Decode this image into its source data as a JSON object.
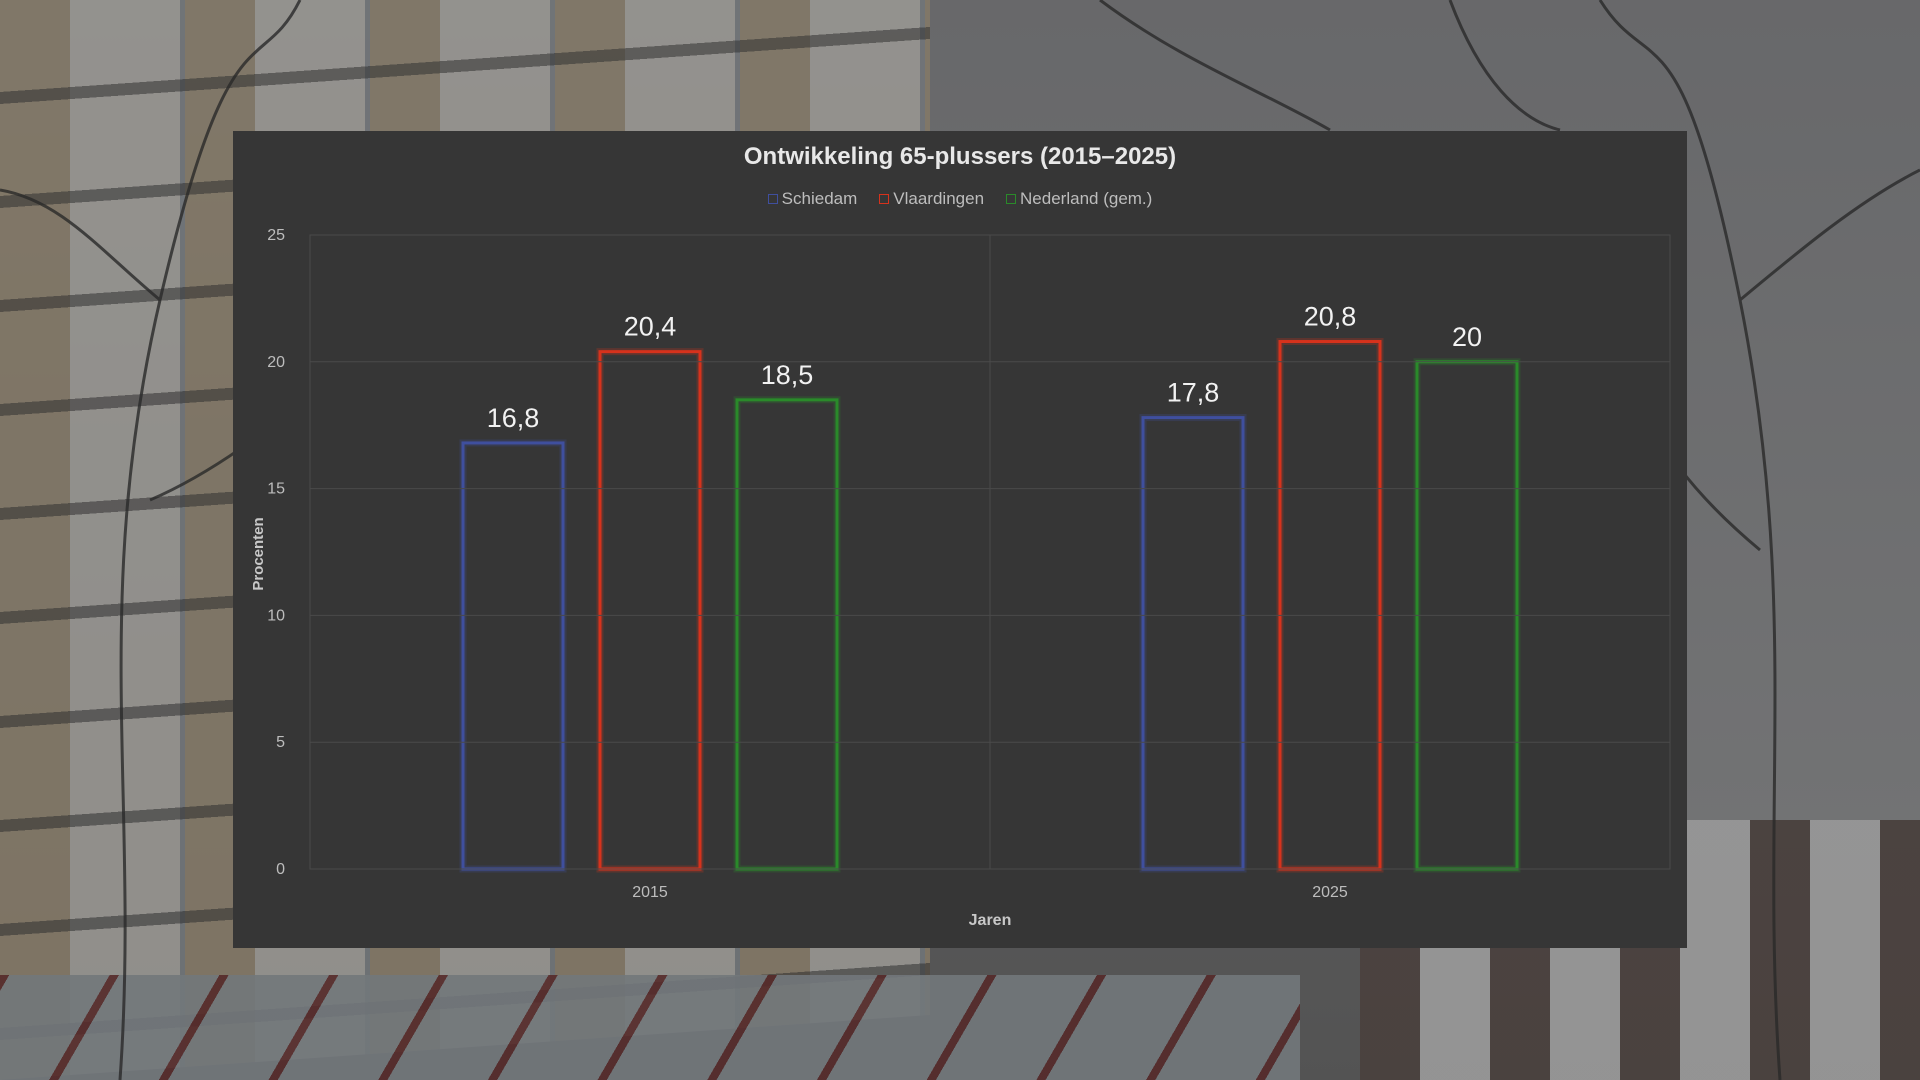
{
  "chart_data": {
    "type": "bar",
    "title": "Ontwikkeling 65-plussers (2015–2025)",
    "xlabel": "Jaren",
    "ylabel": "Procenten",
    "categories": [
      "2015",
      "2025"
    ],
    "ylim": [
      0,
      25
    ],
    "yticks": [
      "0",
      "5",
      "10",
      "15",
      "20",
      "25"
    ],
    "grid": true,
    "legend_position": "top-center",
    "series": [
      {
        "name": "Schiedam",
        "color": "#3f4f9e",
        "values": [
          16.8,
          17.8
        ],
        "labels": [
          "16,8",
          "17,8"
        ]
      },
      {
        "name": "Vlaardingen",
        "color": "#d6321c",
        "values": [
          20.4,
          20.8
        ],
        "labels": [
          "20,4",
          "20,8"
        ]
      },
      {
        "name": "Nederland (gem.)",
        "color": "#2a8a2a",
        "values": [
          18.5,
          20
        ],
        "labels": [
          "18,5",
          "20"
        ]
      }
    ]
  }
}
